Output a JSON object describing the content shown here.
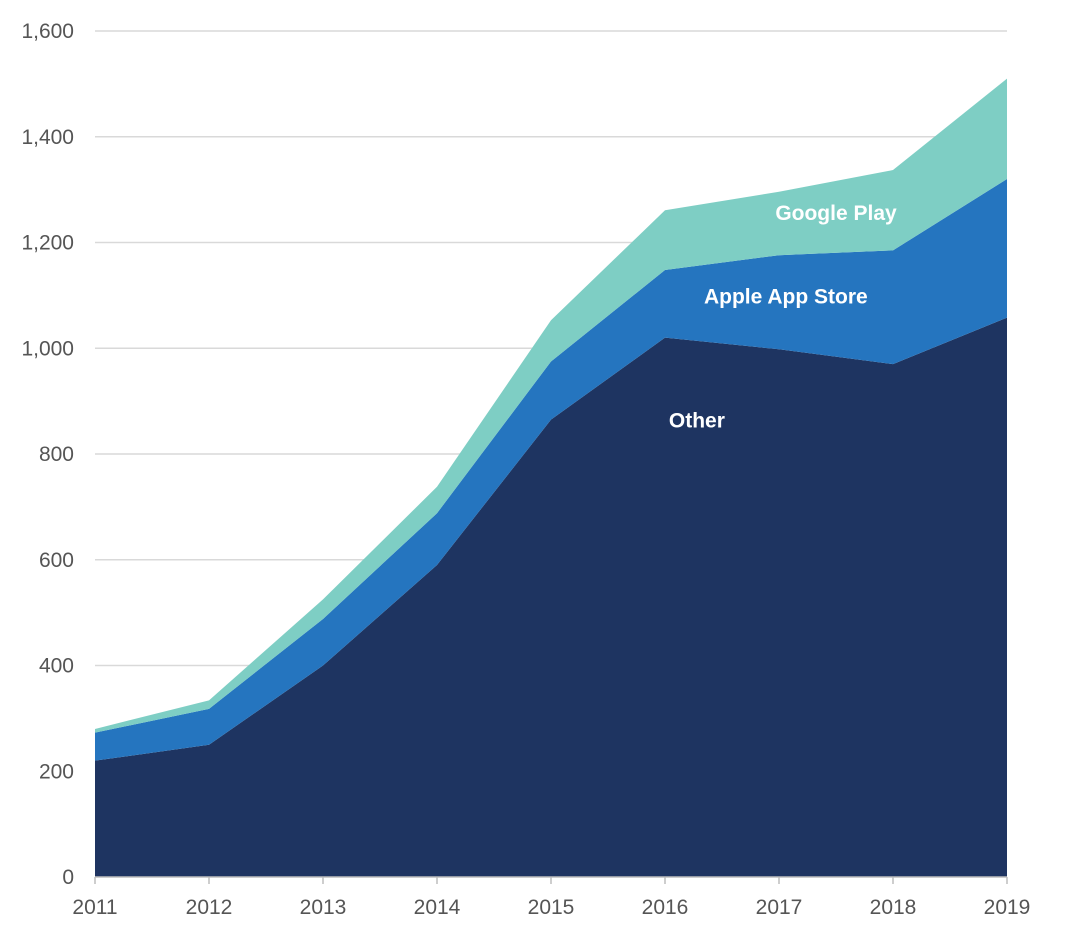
{
  "chart_data": {
    "type": "area",
    "stacked": true,
    "title": "",
    "xlabel": "",
    "ylabel": "",
    "x": [
      "2011",
      "2012",
      "2013",
      "2014",
      "2015",
      "2016",
      "2017",
      "2018",
      "2019"
    ],
    "ylim": [
      0,
      1600
    ],
    "yticks": [
      0,
      200,
      400,
      600,
      800,
      1000,
      1200,
      1400,
      1600
    ],
    "ytick_labels": [
      "0",
      "200",
      "400",
      "600",
      "800",
      "1,000",
      "1,200",
      "1,400",
      "1,600"
    ],
    "grid": true,
    "legend": "none (labels placed on areas)",
    "series": [
      {
        "name": "Other",
        "color": "#1e3461",
        "values": [
          220,
          250,
          400,
          590,
          865,
          1020,
          998,
          970,
          1058
        ]
      },
      {
        "name": "Apple App Store",
        "color": "#2575bf",
        "values": [
          53,
          68,
          88,
          98,
          110,
          128,
          178,
          215,
          262
        ]
      },
      {
        "name": "Google Play",
        "color": "#7ecec4",
        "values": [
          7,
          16,
          37,
          50,
          78,
          113,
          120,
          152,
          190
        ]
      }
    ]
  }
}
